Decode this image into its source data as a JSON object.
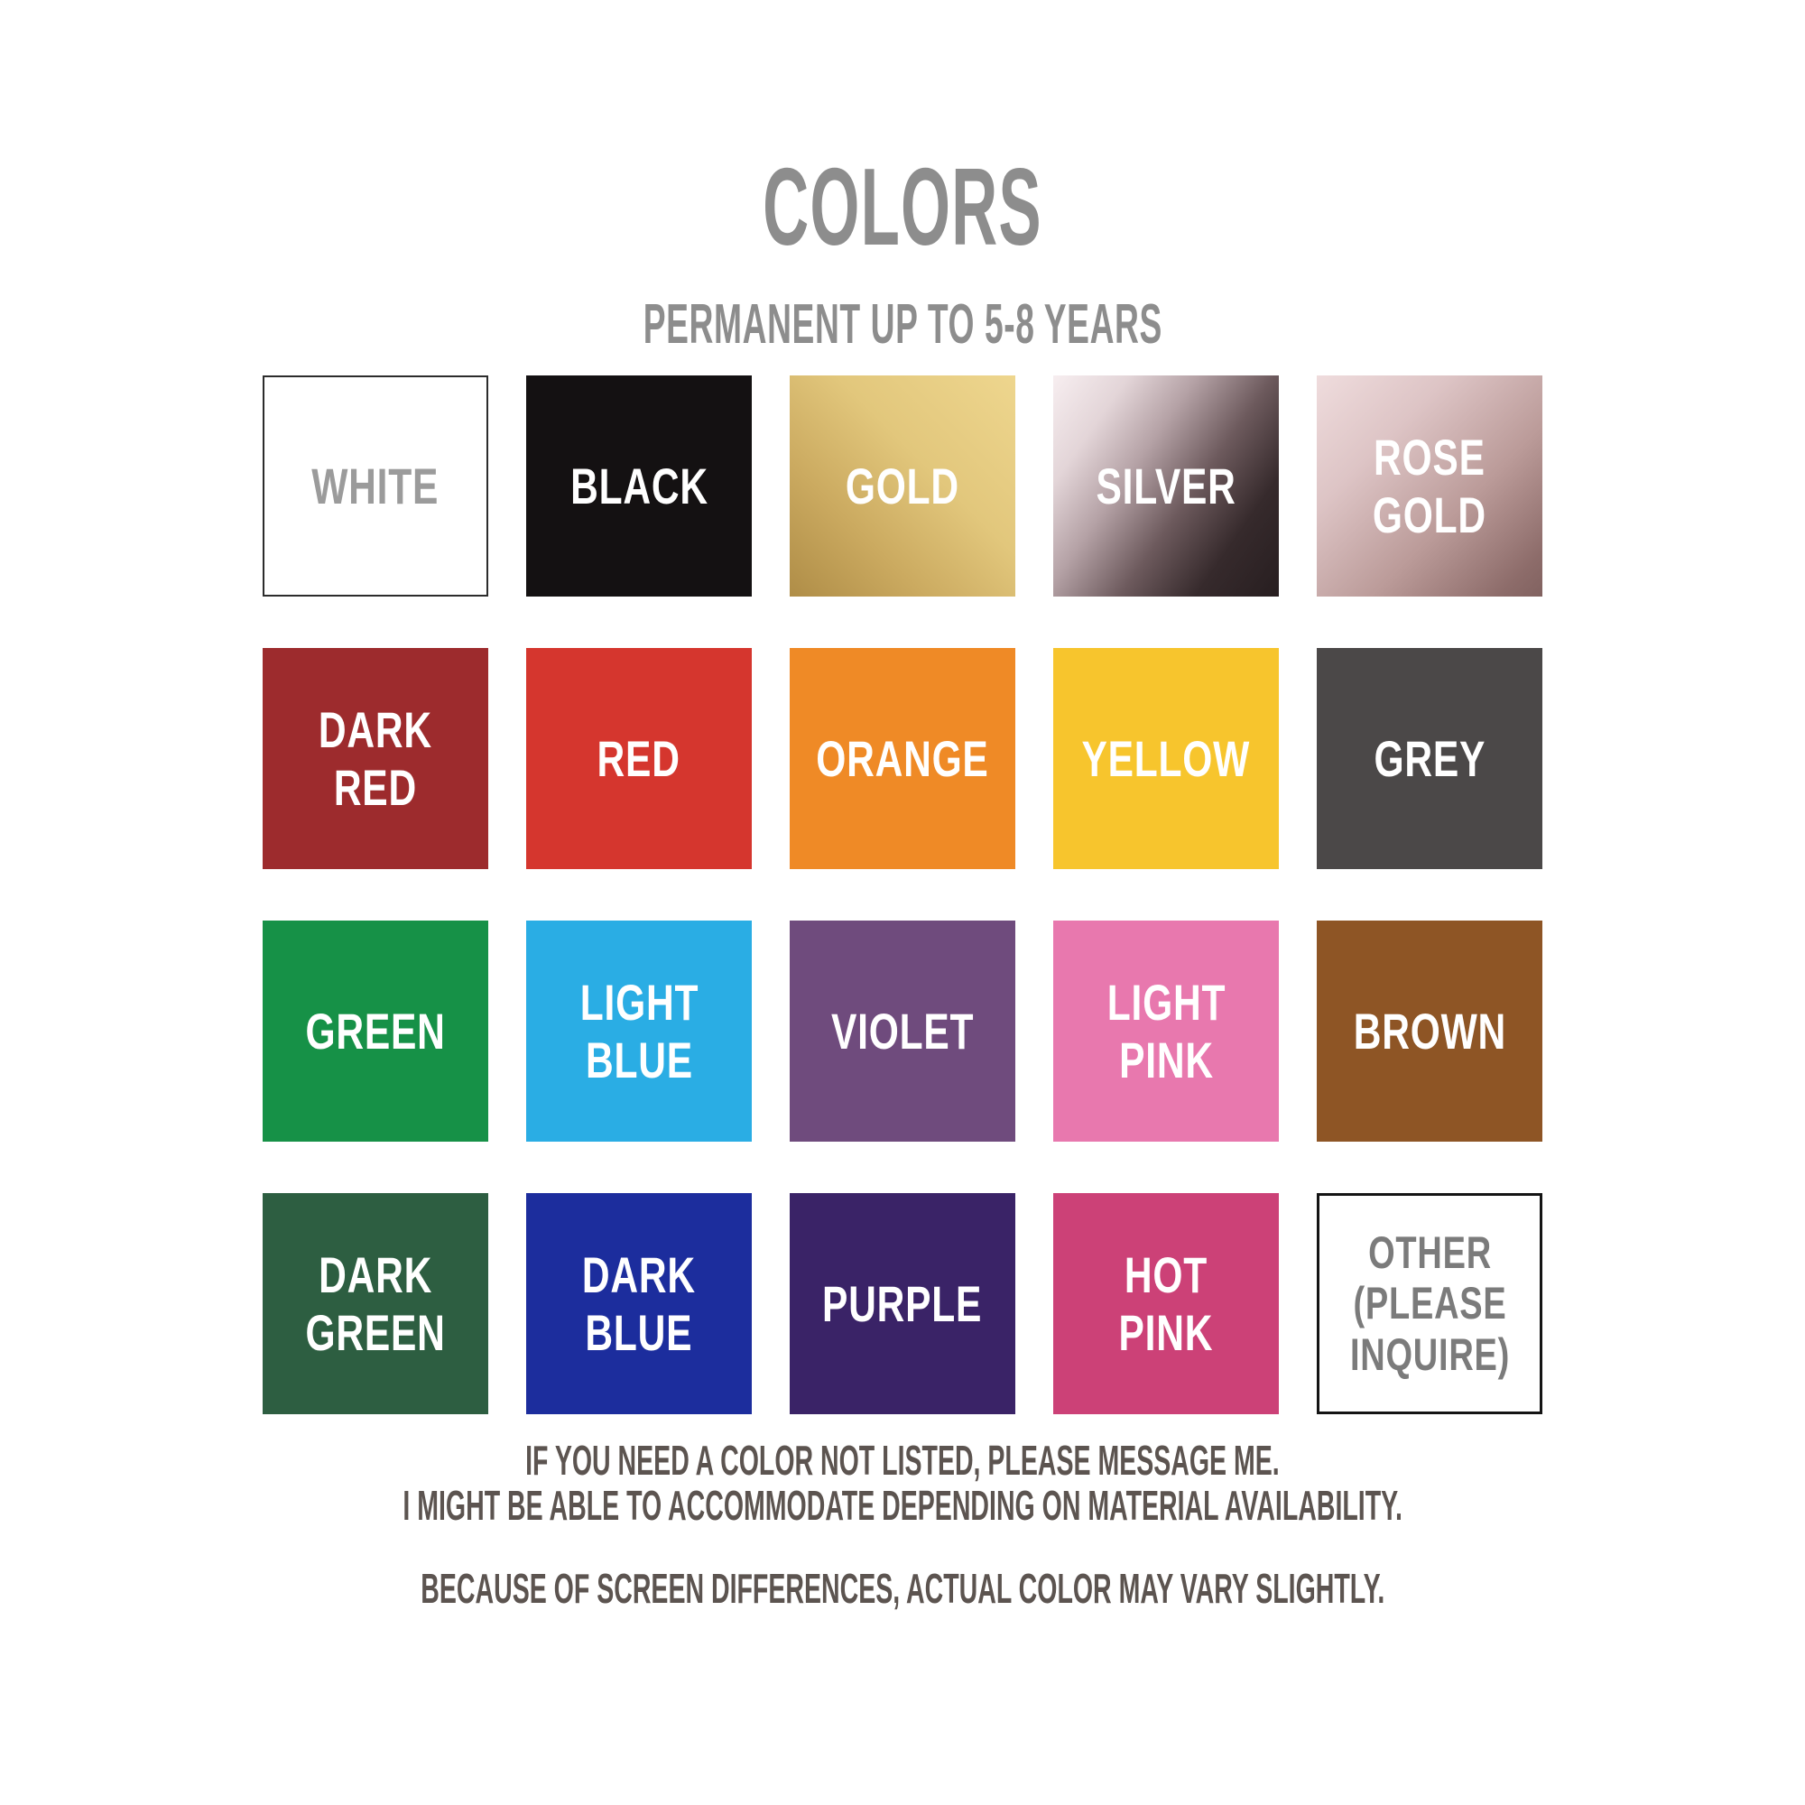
{
  "page": {
    "background": "#ffffff",
    "title": "COLORS",
    "title_color": "#8d8d8d",
    "subtitle": "PERMANENT UP TO 5-8 YEARS",
    "subtitle_color": "#8d8d8d"
  },
  "swatches": [
    {
      "id": "white",
      "label": "WHITE",
      "bg": "#ffffff",
      "border": "#2c2c2c",
      "border_width": "2px",
      "label_color": "#9b9b9b"
    },
    {
      "id": "black",
      "label": "BLACK",
      "bg": "#141112",
      "label_color": "#ffffff"
    },
    {
      "id": "gold",
      "label": "GOLD",
      "gradient": {
        "angle": 225,
        "stops": [
          "#eed68e 0%",
          "#e2c77c 40%",
          "#cbaa60 70%",
          "#af8d47 100%"
        ]
      },
      "label_color": "#ffffff"
    },
    {
      "id": "silver",
      "label": "SILVER",
      "gradient": {
        "angle": 125,
        "stops": [
          "#f7eef0 0%",
          "#e3d5d8 20%",
          "#b5a2a6 38%",
          "#6d5a5d 58%",
          "#362a2c 78%",
          "#271e20 100%"
        ]
      },
      "label_color": "#ffffff"
    },
    {
      "id": "rose-gold",
      "label": "ROSE\nGOLD",
      "gradient": {
        "angle": 135,
        "stops": [
          "#efdcdd 0%",
          "#ddc4c5 30%",
          "#bb9b99 62%",
          "#8d6c6a 90%",
          "#816260 100%"
        ]
      },
      "label_color": "#ffffff"
    },
    {
      "id": "dark-red",
      "label": "DARK\nRED",
      "bg": "#9d2b2d",
      "label_color": "#ffffff"
    },
    {
      "id": "red",
      "label": "RED",
      "bg": "#d5362e",
      "label_color": "#ffffff"
    },
    {
      "id": "orange",
      "label": "ORANGE",
      "bg": "#ef8a26",
      "label_color": "#ffffff"
    },
    {
      "id": "yellow",
      "label": "YELLOW",
      "bg": "#f7c52d",
      "label_color": "#ffffff"
    },
    {
      "id": "grey",
      "label": "GREY",
      "bg": "#4b4848",
      "label_color": "#ffffff"
    },
    {
      "id": "green",
      "label": "GREEN",
      "bg": "#169147",
      "label_color": "#ffffff"
    },
    {
      "id": "light-blue",
      "label": "LIGHT\nBLUE",
      "bg": "#2aade4",
      "label_color": "#ffffff"
    },
    {
      "id": "violet",
      "label": "VIOLET",
      "bg": "#6f4b7d",
      "label_color": "#ffffff"
    },
    {
      "id": "light-pink",
      "label": "LIGHT\nPINK",
      "bg": "#e878ae",
      "label_color": "#ffffff"
    },
    {
      "id": "brown",
      "label": "BROWN",
      "bg": "#8e5525",
      "label_color": "#ffffff"
    },
    {
      "id": "dark-green",
      "label": "DARK\nGREEN",
      "bg": "#2d5e41",
      "label_color": "#ffffff"
    },
    {
      "id": "dark-blue",
      "label": "DARK\nBLUE",
      "bg": "#1c2d9d",
      "label_color": "#ffffff"
    },
    {
      "id": "purple",
      "label": "PURPLE",
      "bg": "#3a2367",
      "label_color": "#ffffff"
    },
    {
      "id": "hot-pink",
      "label": "HOT\nPINK",
      "bg": "#cc4177",
      "label_color": "#ffffff"
    },
    {
      "id": "other",
      "label": "OTHER\n(PLEASE\nINQUIRE)",
      "bg": "#ffffff",
      "border": "#141414",
      "border_width": "3px",
      "label_color": "#7b7b7b",
      "small": true
    }
  ],
  "footer": {
    "line1": "IF YOU NEED A COLOR NOT LISTED, PLEASE MESSAGE ME.",
    "line2": "I MIGHT BE ABLE TO ACCOMMODATE DEPENDING ON MATERIAL AVAILABILITY.",
    "line3": "BECAUSE OF SCREEN DIFFERENCES, ACTUAL COLOR MAY VARY SLIGHTLY.",
    "text_color": "#5c5450"
  }
}
